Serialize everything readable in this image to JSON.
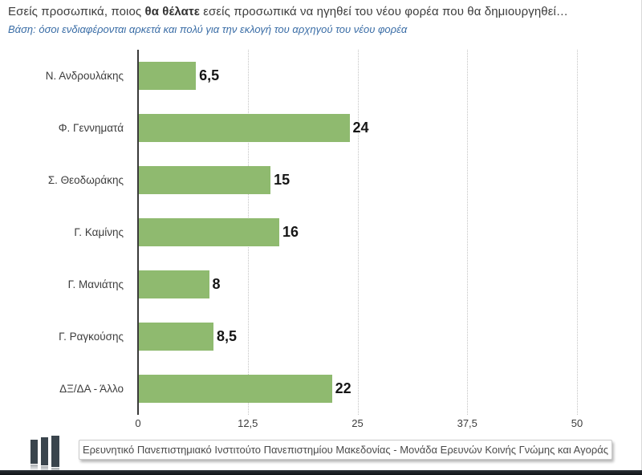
{
  "header": {
    "title_prefix": "Εσείς προσωπικά, ποιος ",
    "title_bold": "θα θέλατε",
    "title_suffix": " εσείς προσωπικά να ηγηθεί του νέου φορέα που θα δημιουργηθεί…",
    "subtitle": "Βάση: όσοι ενδιαφέρονται αρκετά και πολύ για την εκλογή του αρχηγού του νέου φορέα"
  },
  "chart_data": {
    "type": "bar",
    "orientation": "horizontal",
    "categories": [
      "Ν. Ανδρουλάκης",
      "Φ. Γεννηματά",
      "Σ. Θεοδωράκης",
      "Γ. Καμίνης",
      "Γ. Μανιάτης",
      "Γ. Ραγκούσης",
      "ΔΞ/ΔΑ - Άλλο"
    ],
    "values": [
      6.5,
      24,
      15,
      16,
      8,
      8.5,
      22
    ],
    "value_labels": [
      "6,5",
      "24",
      "15",
      "16",
      "8",
      "8,5",
      "22"
    ],
    "xlim": [
      0,
      50
    ],
    "x_ticks": [
      0,
      12.5,
      25,
      37.5,
      50
    ],
    "x_tick_labels": [
      "0",
      "12,5",
      "25",
      "37,5",
      "50"
    ],
    "grid": "vertical-dotted",
    "legend": "none",
    "bar_color": "#8FBA6F",
    "title": ""
  },
  "footer": {
    "source": "Ερευνητικό Πανεπιστημιακό Ινστιτούτο Πανεπιστημίου Μακεδονίας - Μονάδα Ερευνών Κοινής Γνώμης και Αγοράς"
  },
  "colors": {
    "bar": "#8FBA6F",
    "subtitle_blue": "#3A6DA6",
    "logo_slate": "#3A454D",
    "axis": "#3A3A3A"
  }
}
